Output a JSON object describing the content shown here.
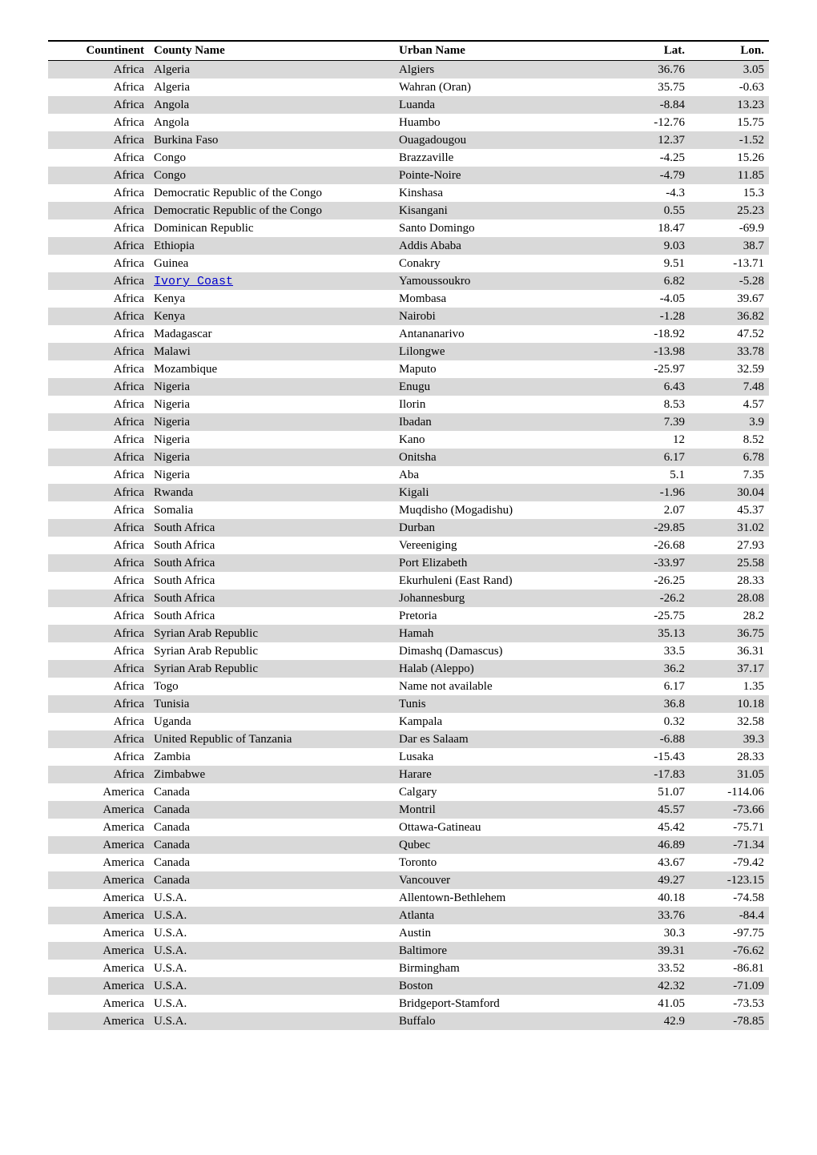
{
  "columns": [
    "Countinent",
    "County Name",
    "Urban Name",
    "Lat.",
    "Lon."
  ],
  "col_classes": [
    "col-continent",
    "col-country",
    "col-urban",
    "col-lat",
    "col-lon"
  ],
  "link_row_index": 12,
  "link_col_index": 1,
  "rows": [
    [
      "Africa",
      "Algeria",
      "Algiers",
      "36.76",
      "3.05"
    ],
    [
      "Africa",
      "Algeria",
      "Wahran (Oran)",
      "35.75",
      "-0.63"
    ],
    [
      "Africa",
      "Angola",
      "Luanda",
      "-8.84",
      "13.23"
    ],
    [
      "Africa",
      "Angola",
      "Huambo",
      "-12.76",
      "15.75"
    ],
    [
      "Africa",
      "Burkina Faso",
      "Ouagadougou",
      "12.37",
      "-1.52"
    ],
    [
      "Africa",
      "Congo",
      "Brazzaville",
      "-4.25",
      "15.26"
    ],
    [
      "Africa",
      "Congo",
      "Pointe-Noire",
      "-4.79",
      "11.85"
    ],
    [
      "Africa",
      "Democratic Republic of the Congo",
      "Kinshasa",
      "-4.3",
      "15.3"
    ],
    [
      "Africa",
      "Democratic Republic of the Congo",
      "Kisangani",
      "0.55",
      "25.23"
    ],
    [
      "Africa",
      "Dominican Republic",
      "Santo Domingo",
      "18.47",
      "-69.9"
    ],
    [
      "Africa",
      "Ethiopia",
      "Addis Ababa",
      "9.03",
      "38.7"
    ],
    [
      "Africa",
      "Guinea",
      "Conakry",
      "9.51",
      "-13.71"
    ],
    [
      "Africa",
      "Ivory Coast",
      "Yamoussoukro",
      "6.82",
      "-5.28"
    ],
    [
      "Africa",
      "Kenya",
      "Mombasa",
      "-4.05",
      "39.67"
    ],
    [
      "Africa",
      "Kenya",
      "Nairobi",
      "-1.28",
      "36.82"
    ],
    [
      "Africa",
      "Madagascar",
      "Antananarivo",
      "-18.92",
      "47.52"
    ],
    [
      "Africa",
      "Malawi",
      "Lilongwe",
      "-13.98",
      "33.78"
    ],
    [
      "Africa",
      "Mozambique",
      "Maputo",
      "-25.97",
      "32.59"
    ],
    [
      "Africa",
      "Nigeria",
      "Enugu",
      "6.43",
      "7.48"
    ],
    [
      "Africa",
      "Nigeria",
      "Ilorin",
      "8.53",
      "4.57"
    ],
    [
      "Africa",
      "Nigeria",
      "Ibadan",
      "7.39",
      "3.9"
    ],
    [
      "Africa",
      "Nigeria",
      "Kano",
      "12",
      "8.52"
    ],
    [
      "Africa",
      "Nigeria",
      "Onitsha",
      "6.17",
      "6.78"
    ],
    [
      "Africa",
      "Nigeria",
      "Aba",
      "5.1",
      "7.35"
    ],
    [
      "Africa",
      "Rwanda",
      "Kigali",
      "-1.96",
      "30.04"
    ],
    [
      "Africa",
      "Somalia",
      "Muqdisho (Mogadishu)",
      "2.07",
      "45.37"
    ],
    [
      "Africa",
      "South Africa",
      "Durban",
      "-29.85",
      "31.02"
    ],
    [
      "Africa",
      "South Africa",
      "Vereeniging",
      "-26.68",
      "27.93"
    ],
    [
      "Africa",
      "South Africa",
      "Port Elizabeth",
      "-33.97",
      "25.58"
    ],
    [
      "Africa",
      "South Africa",
      "Ekurhuleni (East Rand)",
      "-26.25",
      "28.33"
    ],
    [
      "Africa",
      "South Africa",
      "Johannesburg",
      "-26.2",
      "28.08"
    ],
    [
      "Africa",
      "South Africa",
      "Pretoria",
      "-25.75",
      "28.2"
    ],
    [
      "Africa",
      "Syrian Arab Republic",
      "Hamah",
      "35.13",
      "36.75"
    ],
    [
      "Africa",
      "Syrian Arab Republic",
      "Dimashq (Damascus)",
      "33.5",
      "36.31"
    ],
    [
      "Africa",
      "Syrian Arab Republic",
      "Halab (Aleppo)",
      "36.2",
      "37.17"
    ],
    [
      "Africa",
      "Togo",
      "Name not available",
      "6.17",
      "1.35"
    ],
    [
      "Africa",
      "Tunisia",
      "Tunis",
      "36.8",
      "10.18"
    ],
    [
      "Africa",
      "Uganda",
      "Kampala",
      "0.32",
      "32.58"
    ],
    [
      "Africa",
      "United Republic of Tanzania",
      "Dar es Salaam",
      "-6.88",
      "39.3"
    ],
    [
      "Africa",
      "Zambia",
      "Lusaka",
      "-15.43",
      "28.33"
    ],
    [
      "Africa",
      "Zimbabwe",
      "Harare",
      "-17.83",
      "31.05"
    ],
    [
      "America",
      "Canada",
      "Calgary",
      "51.07",
      "-114.06"
    ],
    [
      "America",
      "Canada",
      "Montril",
      "45.57",
      "-73.66"
    ],
    [
      "America",
      "Canada",
      "Ottawa-Gatineau",
      "45.42",
      "-75.71"
    ],
    [
      "America",
      "Canada",
      "Qubec",
      "46.89",
      "-71.34"
    ],
    [
      "America",
      "Canada",
      "Toronto",
      "43.67",
      "-79.42"
    ],
    [
      "America",
      "Canada",
      "Vancouver",
      "49.27",
      "-123.15"
    ],
    [
      "America",
      "U.S.A.",
      "Allentown-Bethlehem",
      "40.18",
      "-74.58"
    ],
    [
      "America",
      "U.S.A.",
      "Atlanta",
      "33.76",
      "-84.4"
    ],
    [
      "America",
      "U.S.A.",
      "Austin",
      "30.3",
      "-97.75"
    ],
    [
      "America",
      "U.S.A.",
      "Baltimore",
      "39.31",
      "-76.62"
    ],
    [
      "America",
      "U.S.A.",
      "Birmingham",
      "33.52",
      "-86.81"
    ],
    [
      "America",
      "U.S.A.",
      "Boston",
      "42.32",
      "-71.09"
    ],
    [
      "America",
      "U.S.A.",
      "Bridgeport-Stamford",
      "41.05",
      "-73.53"
    ],
    [
      "America",
      "U.S.A.",
      "Buffalo",
      "42.9",
      "-78.85"
    ]
  ],
  "style": {
    "odd_bg": "#d9d9d9",
    "even_bg": "#ffffff",
    "border_color": "#000000",
    "font_family": "Times New Roman",
    "font_size_pt": 11,
    "link_color": "#0000cc"
  }
}
